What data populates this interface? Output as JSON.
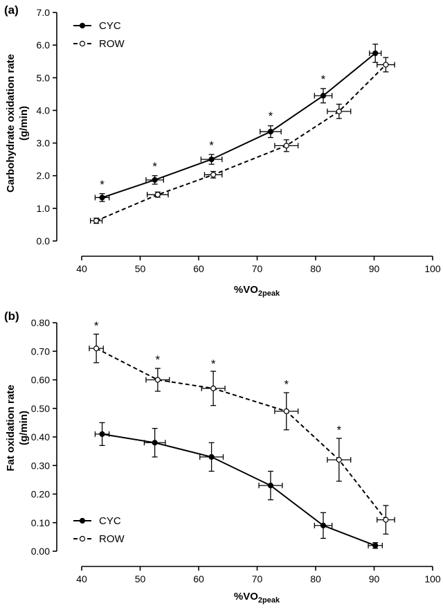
{
  "chart_data": [
    {
      "type": "line",
      "panel_label": "(a)",
      "xlabel": "%VO",
      "xlabel_sub": "2peak",
      "ylabel_line1": "Carbohydrate oxidation rate",
      "ylabel_line2": "(g/min)",
      "xlim": [
        40,
        100
      ],
      "ylim": [
        0,
        7
      ],
      "xticks": [
        "40",
        "50",
        "60",
        "70",
        "80",
        "90",
        "100"
      ],
      "yticks": [
        "0.0",
        "1.0",
        "2.0",
        "3.0",
        "4.0",
        "5.0",
        "6.0",
        "7.0"
      ],
      "legend_position": "top-left",
      "series": [
        {
          "name": "CYC",
          "marker": "filled",
          "line": "solid",
          "points": [
            {
              "x": 43.5,
              "y": 1.33,
              "xerr": 1.2,
              "yerr": 0.12
            },
            {
              "x": 52.5,
              "y": 1.87,
              "xerr": 1.5,
              "yerr": 0.13
            },
            {
              "x": 62.2,
              "y": 2.5,
              "xerr": 1.8,
              "yerr": 0.15
            },
            {
              "x": 72.3,
              "y": 3.35,
              "xerr": 1.8,
              "yerr": 0.18
            },
            {
              "x": 81.3,
              "y": 4.45,
              "xerr": 1.5,
              "yerr": 0.22
            },
            {
              "x": 90.2,
              "y": 5.75,
              "xerr": 1.0,
              "yerr": 0.28
            }
          ]
        },
        {
          "name": "ROW",
          "marker": "open",
          "line": "dashed",
          "points": [
            {
              "x": 42.5,
              "y": 0.62,
              "xerr": 1.0,
              "yerr": 0.08
            },
            {
              "x": 53.0,
              "y": 1.42,
              "xerr": 1.8,
              "yerr": 0.08
            },
            {
              "x": 62.5,
              "y": 2.03,
              "xerr": 1.5,
              "yerr": 0.1
            },
            {
              "x": 75.0,
              "y": 2.92,
              "xerr": 2.0,
              "yerr": 0.18
            },
            {
              "x": 84.0,
              "y": 3.97,
              "xerr": 2.0,
              "yerr": 0.22
            },
            {
              "x": 92.0,
              "y": 5.4,
              "xerr": 1.5,
              "yerr": 0.22
            }
          ]
        }
      ],
      "annotations": [
        {
          "text": "*",
          "x": 43.5,
          "y": 1.74
        },
        {
          "text": "*",
          "x": 52.5,
          "y": 2.29
        },
        {
          "text": "*",
          "x": 62.2,
          "y": 2.94
        },
        {
          "text": "*",
          "x": 72.3,
          "y": 3.84
        },
        {
          "text": "*",
          "x": 81.3,
          "y": 4.96
        }
      ]
    },
    {
      "type": "line",
      "panel_label": "(b)",
      "xlabel": "%VO",
      "xlabel_sub": "2peak",
      "ylabel_line1": "Fat oxidation rate",
      "ylabel_line2": "(g/min)",
      "xlim": [
        40,
        100
      ],
      "ylim": [
        0,
        0.8
      ],
      "xticks": [
        "40",
        "50",
        "60",
        "70",
        "80",
        "90",
        "100"
      ],
      "yticks": [
        "0.00",
        "0.10",
        "0.20",
        "0.30",
        "0.40",
        "0.50",
        "0.60",
        "0.70",
        "0.80"
      ],
      "legend_position": "bottom-left",
      "series": [
        {
          "name": "CYC",
          "marker": "filled",
          "line": "solid",
          "points": [
            {
              "x": 43.5,
              "y": 0.41,
              "xerr": 1.2,
              "yerr": 0.04
            },
            {
              "x": 52.5,
              "y": 0.38,
              "xerr": 1.8,
              "yerr": 0.05
            },
            {
              "x": 62.2,
              "y": 0.33,
              "xerr": 2.0,
              "yerr": 0.05
            },
            {
              "x": 72.3,
              "y": 0.23,
              "xerr": 2.0,
              "yerr": 0.05
            },
            {
              "x": 81.3,
              "y": 0.09,
              "xerr": 1.5,
              "yerr": 0.045
            },
            {
              "x": 90.2,
              "y": 0.02,
              "xerr": 1.2,
              "yerr": 0.01
            }
          ]
        },
        {
          "name": "ROW",
          "marker": "open",
          "line": "dashed",
          "points": [
            {
              "x": 42.5,
              "y": 0.71,
              "xerr": 1.2,
              "yerr": 0.05
            },
            {
              "x": 53.0,
              "y": 0.6,
              "xerr": 2.0,
              "yerr": 0.04
            },
            {
              "x": 62.5,
              "y": 0.57,
              "xerr": 2.0,
              "yerr": 0.06
            },
            {
              "x": 75.0,
              "y": 0.49,
              "xerr": 2.0,
              "yerr": 0.065
            },
            {
              "x": 84.0,
              "y": 0.32,
              "xerr": 2.0,
              "yerr": 0.075
            },
            {
              "x": 92.0,
              "y": 0.11,
              "xerr": 1.5,
              "yerr": 0.05
            }
          ]
        }
      ],
      "annotations": [
        {
          "text": "*",
          "x": 42.5,
          "y": 0.79
        },
        {
          "text": "*",
          "x": 53.0,
          "y": 0.672
        },
        {
          "text": "*",
          "x": 62.5,
          "y": 0.657
        },
        {
          "text": "*",
          "x": 75.0,
          "y": 0.585
        },
        {
          "text": "*",
          "x": 84.0,
          "y": 0.425
        }
      ]
    }
  ]
}
